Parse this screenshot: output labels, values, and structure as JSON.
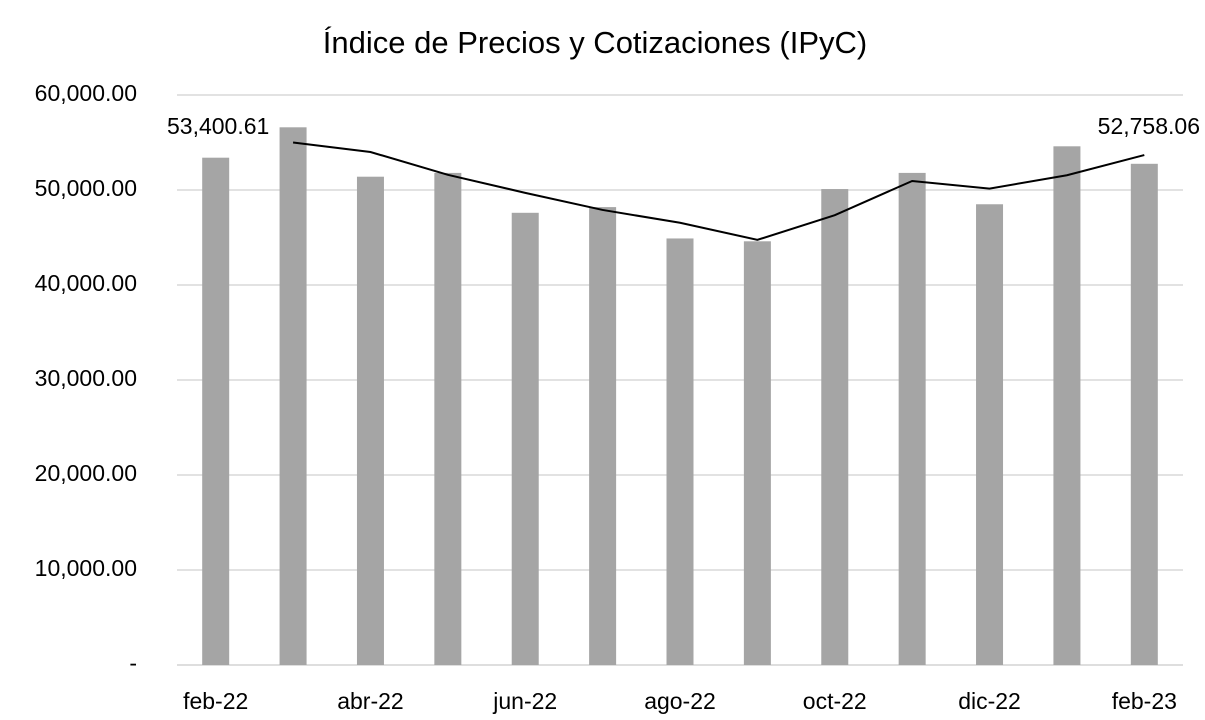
{
  "chart_data": {
    "type": "bar",
    "title": "Índice de Precios y Cotizaciones (IPyC)",
    "categories": [
      "feb-22",
      null,
      "abr-22",
      null,
      "jun-22",
      null,
      "ago-22",
      null,
      "oct-22",
      null,
      "dic-22",
      null,
      "feb-23"
    ],
    "series": [
      {
        "type": "bar",
        "color": "#a5a5a5",
        "values": [
          53400.61,
          56600,
          51400,
          51800,
          47600,
          48200,
          44900,
          44600,
          50100,
          51800,
          48500,
          54600,
          52758.06
        ],
        "value_labels": [
          "53,400.61",
          null,
          null,
          null,
          null,
          null,
          null,
          null,
          null,
          null,
          null,
          null,
          "52,758.06"
        ]
      },
      {
        "type": "line",
        "color": "#000000",
        "values": [
          null,
          55000,
          54000,
          51600,
          49700,
          47900,
          46550,
          44750,
          47350,
          50950,
          50150,
          51550,
          53680
        ]
      }
    ],
    "ylim": [
      0,
      60000
    ],
    "yticks": [
      {
        "value": 0,
        "label": "-"
      },
      {
        "value": 10000,
        "label": "10,000.00"
      },
      {
        "value": 20000,
        "label": "20,000.00"
      },
      {
        "value": 30000,
        "label": "30,000.00"
      },
      {
        "value": 40000,
        "label": "40,000.00"
      },
      {
        "value": 50000,
        "label": "50,000.00"
      },
      {
        "value": 60000,
        "label": "60,000.00"
      }
    ],
    "grid": true
  }
}
